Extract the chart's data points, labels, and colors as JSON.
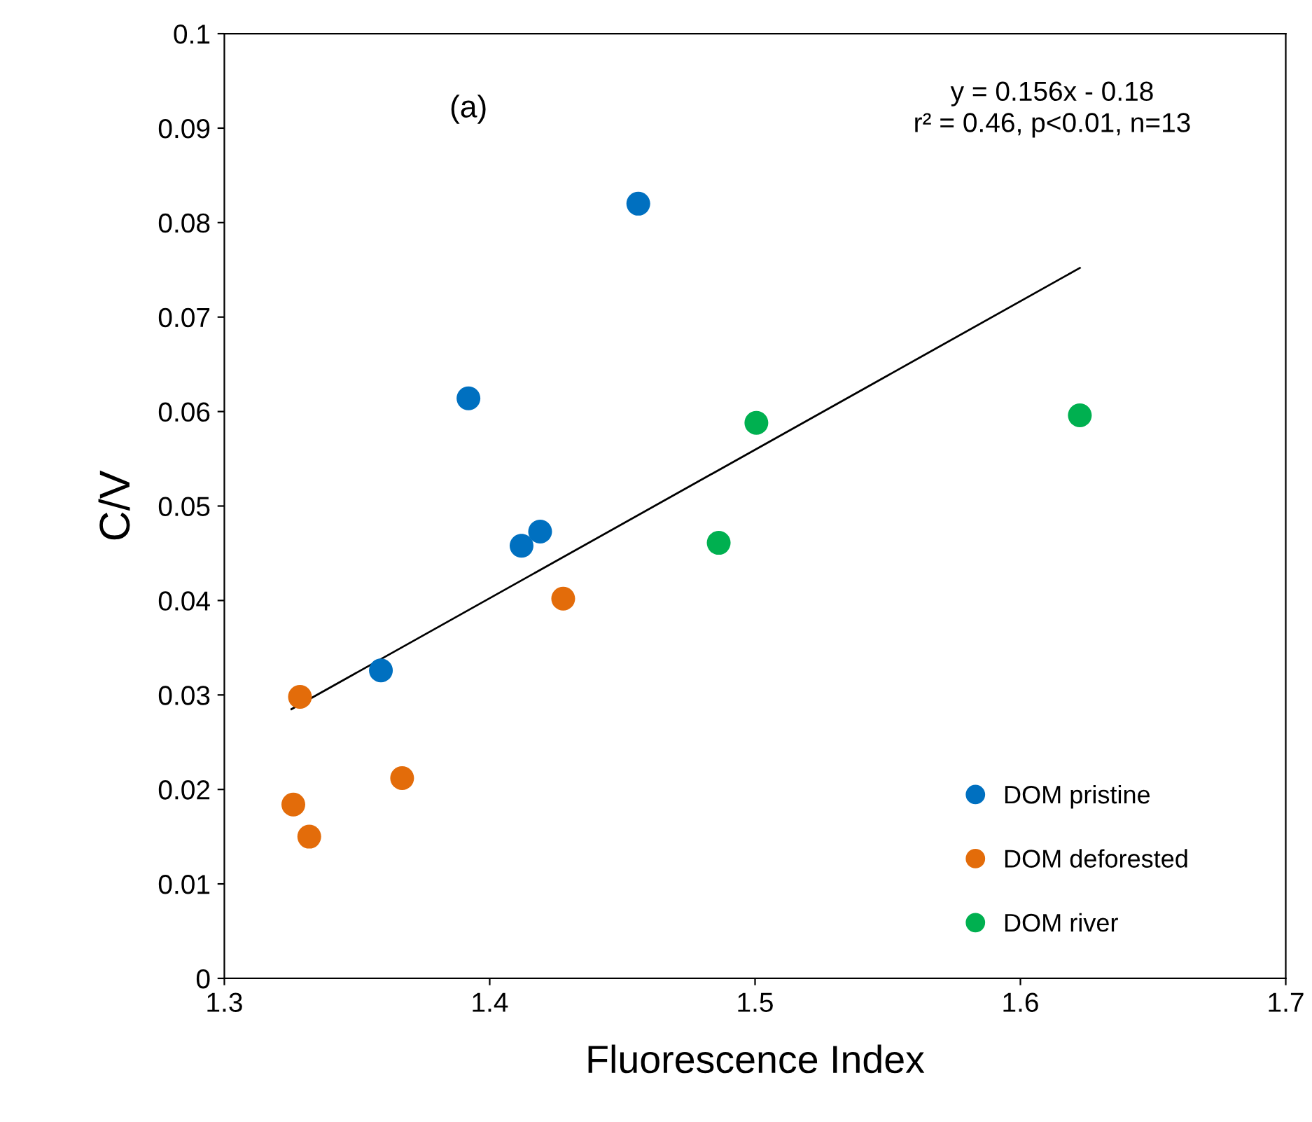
{
  "chart_data": {
    "type": "scatter",
    "xlabel": "Fluorescence Index",
    "ylabel": "C/V",
    "annotations": [
      "(a)",
      "y = 0.156x - 0.18\nr² = 0.46, p<0.01, n=13"
    ],
    "series": [
      {
        "name": "DOM pristine",
        "color": "#0070c0",
        "x": [
          1.456,
          1.392,
          1.412,
          1.419,
          1.359
        ],
        "values": [
          0.082,
          0.0614,
          0.0458,
          0.0473,
          0.0326
        ]
      },
      {
        "name": "DOM deforested",
        "color": "#e36c0a",
        "x": [
          1.3285,
          1.4277,
          1.367,
          1.326,
          1.332
        ],
        "values": [
          0.0298,
          0.0402,
          0.0212,
          0.0184,
          0.015
        ]
      },
      {
        "name": "DOM river",
        "color": "#00b050",
        "x": [
          1.5005,
          1.4863,
          1.6224
        ],
        "values": [
          0.0588,
          0.0461,
          0.0596
        ]
      },
      {
        "type": "line",
        "marker": "none",
        "color": "#000000",
        "x": [
          1.3253,
          1.6224
        ],
        "values": [
          0.0285,
          0.0752
        ]
      }
    ],
    "xlim": [
      1.3,
      1.7
    ],
    "xticks": [
      1.3,
      1.4,
      1.5,
      1.6,
      1.7
    ],
    "ylim": [
      0,
      0.1
    ],
    "yticks": [
      0,
      0.01,
      0.02,
      0.03,
      0.04,
      0.05,
      0.06,
      0.07,
      0.08,
      0.09,
      0.1
    ],
    "marker": "circle",
    "legend": "bottom right",
    "grid": false
  }
}
